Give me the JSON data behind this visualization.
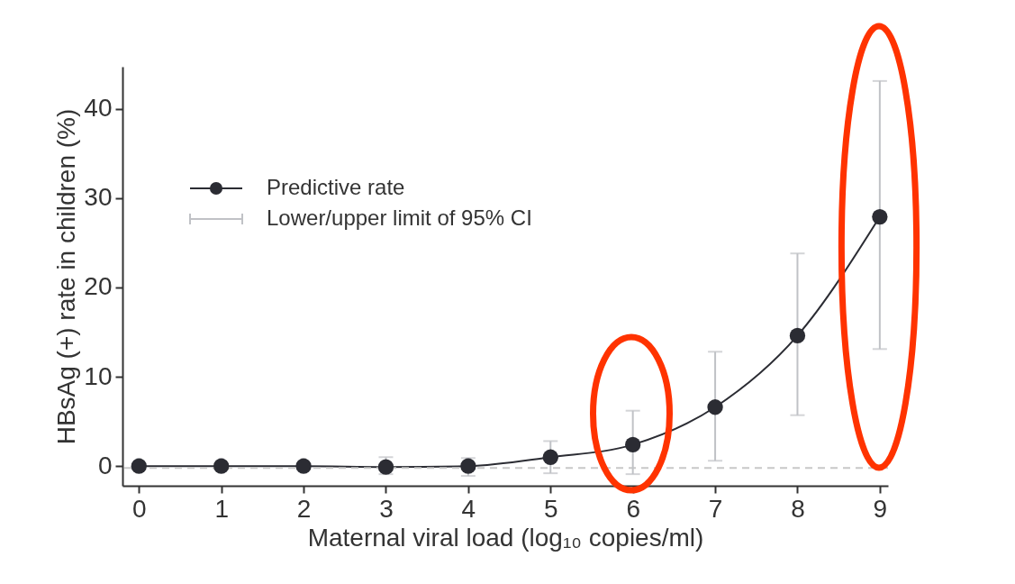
{
  "chart_data": {
    "type": "line",
    "xlabel": "Maternal viral load (log₁₀ copies/ml)",
    "ylabel": "HBsAg (+) rate in children (%)",
    "x": [
      0,
      1,
      2,
      3,
      4,
      5,
      6,
      7,
      8,
      9
    ],
    "series": [
      {
        "name": "Predictive rate",
        "color": "#2b2c33",
        "values": [
          0,
          0,
          0,
          -0.1,
          0,
          1.0,
          2.4,
          6.6,
          14.6,
          27.9
        ],
        "errors": [
          null,
          null,
          null,
          [
            -0.9,
            1.0
          ],
          [
            -1.1,
            0.9
          ],
          [
            -0.8,
            2.8
          ],
          [
            -0.9,
            6.2
          ],
          [
            0.6,
            12.8
          ],
          [
            5.7,
            23.8
          ],
          [
            13.1,
            43.1
          ]
        ]
      }
    ],
    "annotations": [
      "Lower/upper limit of 95% CI"
    ],
    "xlim": [
      -0.2,
      9.1
    ],
    "xticks": [
      0,
      1,
      2,
      3,
      4,
      5,
      6,
      7,
      8,
      9
    ],
    "ylim": [
      -2.2,
      44.7
    ],
    "yticks": [
      0,
      10,
      20,
      30,
      40
    ],
    "ref_lines": [
      {
        "axis": "y",
        "value": -0.2,
        "color": "#c8c8c8",
        "line_style": "dashed"
      }
    ],
    "marker": "circle",
    "line_style": "solid",
    "grid": false,
    "legend": "top left"
  }
}
